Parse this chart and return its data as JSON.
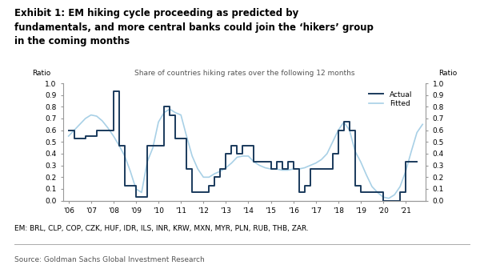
{
  "title_lines": [
    "Exhibit 1: EM hiking cycle proceeding as predicted by",
    "fundamentals, and more central banks could join the ‘hikers’ group",
    "in the coming months"
  ],
  "chart_subtitle": "Share of countries hiking rates over the following 12 months",
  "ylabel_left": "Ratio",
  "ylabel_right": "Ratio",
  "footnote": "EM: BRL, CLP, COP, CZK, HUF, IDR, ILS, INR, KRW, MXN, MYR, PLN, RUB, THB, ZAR.",
  "source": "Source: Goldman Sachs Global Investment Research",
  "ylim": [
    0.0,
    1.0
  ],
  "yticks": [
    0.0,
    0.1,
    0.2,
    0.3,
    0.4,
    0.5,
    0.6,
    0.7,
    0.8,
    0.9,
    1.0
  ],
  "xtick_labels": [
    "'06",
    "'07",
    "'08",
    "'09",
    "'10",
    "'11",
    "'12",
    "'13",
    "'14",
    "'15",
    "'16",
    "'17",
    "'18",
    "'19",
    "'20",
    "'21"
  ],
  "actual_color": "#1a3a5c",
  "fitted_color": "#a8d0e6",
  "actual_x": [
    2006.0,
    2006.25,
    2006.5,
    2006.75,
    2007.0,
    2007.25,
    2007.5,
    2007.75,
    2008.0,
    2008.25,
    2008.5,
    2008.75,
    2009.0,
    2009.25,
    2009.5,
    2009.75,
    2010.0,
    2010.25,
    2010.5,
    2010.75,
    2011.0,
    2011.25,
    2011.5,
    2011.75,
    2012.0,
    2012.25,
    2012.5,
    2012.75,
    2013.0,
    2013.25,
    2013.5,
    2013.75,
    2014.0,
    2014.25,
    2014.5,
    2014.75,
    2015.0,
    2015.25,
    2015.5,
    2015.75,
    2016.0,
    2016.25,
    2016.5,
    2016.75,
    2017.0,
    2017.25,
    2017.5,
    2017.75,
    2018.0,
    2018.25,
    2018.5,
    2018.75,
    2019.0,
    2019.25,
    2019.5,
    2019.75,
    2020.0,
    2020.25,
    2020.5,
    2020.75,
    2021.0,
    2021.25,
    2021.5
  ],
  "actual_y": [
    0.6,
    0.53,
    0.53,
    0.55,
    0.55,
    0.6,
    0.6,
    0.6,
    0.93,
    0.47,
    0.13,
    0.13,
    0.03,
    0.03,
    0.47,
    0.47,
    0.47,
    0.8,
    0.73,
    0.53,
    0.53,
    0.27,
    0.07,
    0.07,
    0.07,
    0.13,
    0.2,
    0.27,
    0.4,
    0.47,
    0.4,
    0.47,
    0.47,
    0.33,
    0.33,
    0.33,
    0.27,
    0.33,
    0.27,
    0.33,
    0.27,
    0.07,
    0.13,
    0.27,
    0.27,
    0.27,
    0.27,
    0.4,
    0.6,
    0.67,
    0.6,
    0.13,
    0.07,
    0.07,
    0.07,
    0.07,
    0.0,
    0.0,
    0.0,
    0.07,
    0.33,
    0.33,
    0.33
  ],
  "fitted_x": [
    2006.0,
    2006.25,
    2006.5,
    2006.75,
    2007.0,
    2007.25,
    2007.5,
    2007.75,
    2008.0,
    2008.25,
    2008.5,
    2008.75,
    2009.0,
    2009.25,
    2009.5,
    2009.75,
    2010.0,
    2010.25,
    2010.5,
    2010.75,
    2011.0,
    2011.25,
    2011.5,
    2011.75,
    2012.0,
    2012.25,
    2012.5,
    2012.75,
    2013.0,
    2013.25,
    2013.5,
    2013.75,
    2014.0,
    2014.25,
    2014.5,
    2014.75,
    2015.0,
    2015.25,
    2015.5,
    2015.75,
    2016.0,
    2016.25,
    2016.5,
    2016.75,
    2017.0,
    2017.25,
    2017.5,
    2017.75,
    2018.0,
    2018.25,
    2018.5,
    2018.75,
    2019.0,
    2019.25,
    2019.5,
    2019.75,
    2020.0,
    2020.25,
    2020.5,
    2020.75,
    2021.0,
    2021.25,
    2021.5,
    2021.75
  ],
  "fitted_y": [
    0.55,
    0.6,
    0.65,
    0.7,
    0.73,
    0.72,
    0.68,
    0.62,
    0.55,
    0.47,
    0.38,
    0.25,
    0.1,
    0.07,
    0.33,
    0.45,
    0.67,
    0.75,
    0.78,
    0.75,
    0.73,
    0.55,
    0.38,
    0.27,
    0.2,
    0.2,
    0.23,
    0.25,
    0.28,
    0.32,
    0.37,
    0.38,
    0.38,
    0.33,
    0.3,
    0.28,
    0.27,
    0.27,
    0.26,
    0.26,
    0.27,
    0.27,
    0.28,
    0.3,
    0.32,
    0.35,
    0.4,
    0.5,
    0.6,
    0.67,
    0.6,
    0.42,
    0.33,
    0.22,
    0.12,
    0.07,
    0.03,
    0.02,
    0.05,
    0.12,
    0.25,
    0.42,
    0.58,
    0.65
  ]
}
